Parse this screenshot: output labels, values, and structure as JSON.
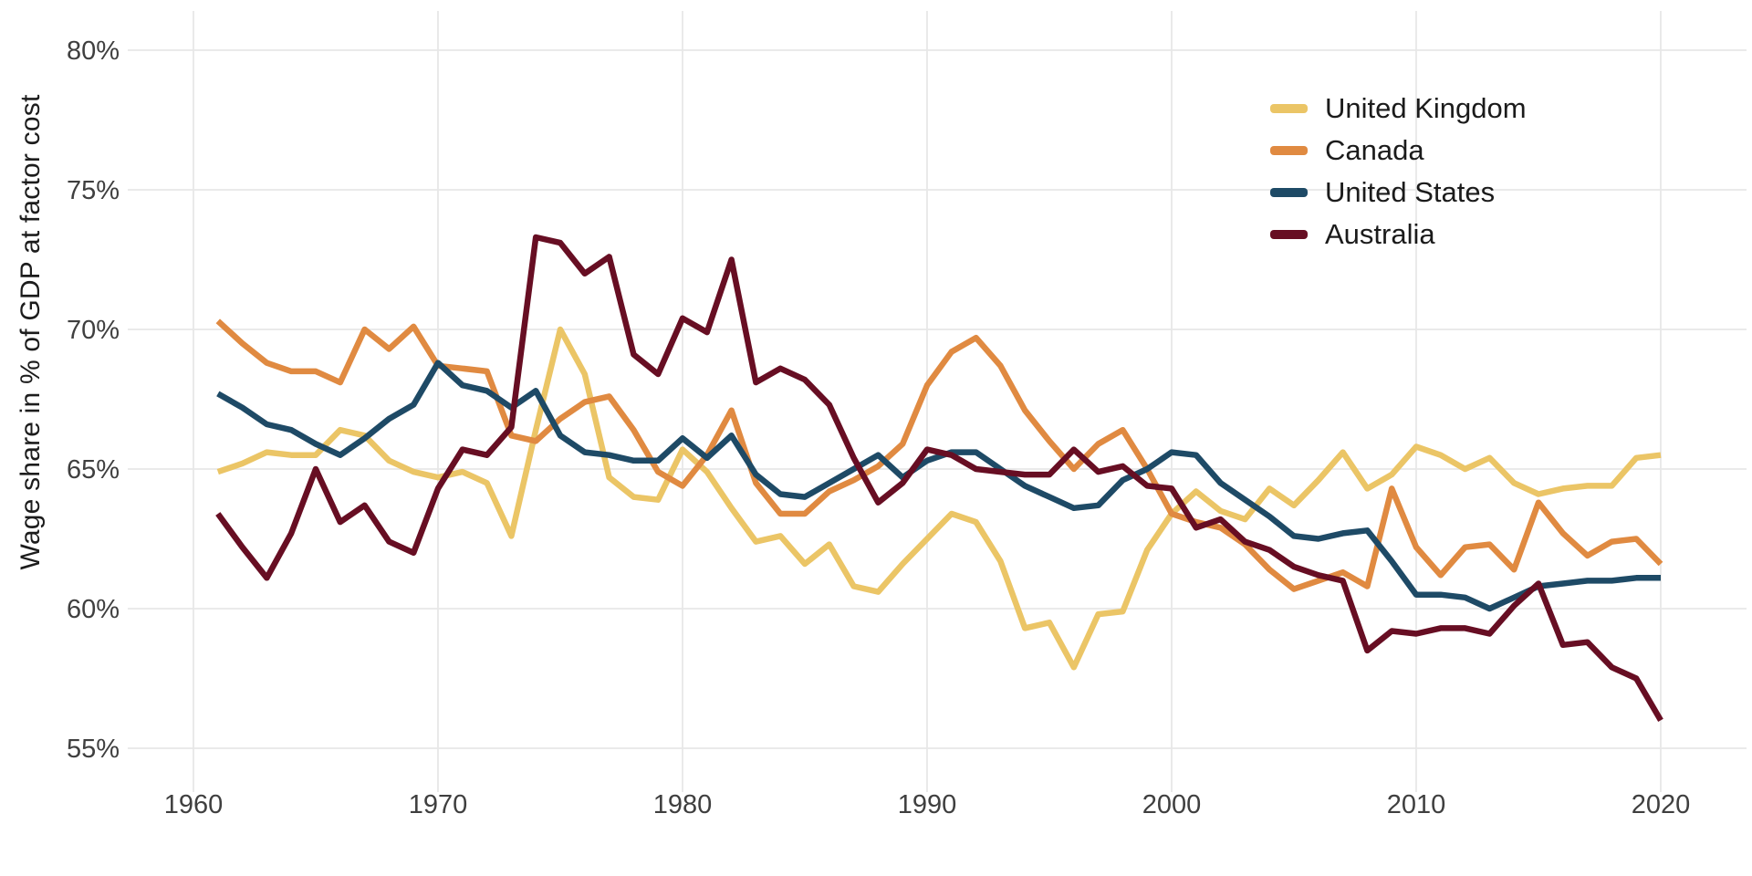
{
  "chart_data": {
    "type": "line",
    "title": "",
    "xlabel": "",
    "ylabel": "Wage share in % of GDP at factor cost",
    "ytick_suffix": "%",
    "xticks": [
      1960,
      1970,
      1980,
      1990,
      2000,
      2010,
      2020
    ],
    "yticks": [
      80,
      75,
      70,
      65,
      60,
      55
    ],
    "xlim": [
      1958,
      2023
    ],
    "ylim": [
      53.5,
      81.5
    ],
    "grid": true,
    "legend_position": "top-right",
    "background_color": "#ffffff",
    "gridline_color": "#e7e7e7",
    "tick_label_color": "#3f3f3f",
    "x": [
      1961,
      1962,
      1963,
      1964,
      1965,
      1966,
      1967,
      1968,
      1969,
      1970,
      1971,
      1972,
      1973,
      1974,
      1975,
      1976,
      1977,
      1978,
      1979,
      1980,
      1981,
      1982,
      1983,
      1984,
      1985,
      1986,
      1987,
      1988,
      1989,
      1990,
      1991,
      1992,
      1993,
      1994,
      1995,
      1996,
      1997,
      1998,
      1999,
      2000,
      2001,
      2002,
      2003,
      2004,
      2005,
      2006,
      2007,
      2008,
      2009,
      2010,
      2011,
      2012,
      2013,
      2014,
      2015,
      2016,
      2017,
      2018,
      2019,
      2020
    ],
    "series": [
      {
        "name": "United Kingdom",
        "color": "#ebc566",
        "values": [
          64.9,
          65.2,
          65.6,
          65.5,
          65.5,
          66.4,
          66.2,
          65.3,
          64.9,
          64.7,
          64.9,
          64.5,
          62.6,
          66.4,
          70.0,
          68.4,
          64.7,
          64.0,
          63.9,
          65.7,
          64.9,
          63.6,
          62.4,
          62.6,
          61.6,
          62.3,
          60.8,
          60.6,
          61.6,
          62.5,
          63.4,
          63.1,
          61.7,
          59.3,
          59.5,
          57.9,
          59.8,
          59.9,
          62.1,
          63.4,
          64.2,
          63.5,
          63.2,
          64.3,
          63.7,
          64.6,
          65.6,
          64.3,
          64.8,
          65.8,
          65.5,
          65.0,
          65.4,
          64.5,
          64.1,
          64.3,
          64.4,
          64.4,
          65.4,
          65.5
        ]
      },
      {
        "name": "Canada",
        "color": "#e08a41",
        "values": [
          70.3,
          69.5,
          68.8,
          68.5,
          68.5,
          68.1,
          70.0,
          69.3,
          70.1,
          68.7,
          68.6,
          68.5,
          66.2,
          66.0,
          66.8,
          67.4,
          67.6,
          66.4,
          64.9,
          64.4,
          65.5,
          67.1,
          64.5,
          63.4,
          63.4,
          64.2,
          64.6,
          65.1,
          65.9,
          68.0,
          69.2,
          69.7,
          68.7,
          67.1,
          66.0,
          65.0,
          65.9,
          66.4,
          65.0,
          63.4,
          63.1,
          62.9,
          62.3,
          61.4,
          60.7,
          61.0,
          61.3,
          60.8,
          64.3,
          62.2,
          61.2,
          62.2,
          62.3,
          61.4,
          63.8,
          62.7,
          61.9,
          62.4,
          62.5,
          61.6
        ]
      },
      {
        "name": "United States",
        "color": "#1e4a66",
        "values": [
          67.7,
          67.2,
          66.6,
          66.4,
          65.9,
          65.5,
          66.1,
          66.8,
          67.3,
          68.8,
          68.0,
          67.8,
          67.2,
          67.8,
          66.2,
          65.6,
          65.5,
          65.3,
          65.3,
          66.1,
          65.4,
          66.2,
          64.8,
          64.1,
          64.0,
          64.5,
          65.0,
          65.5,
          64.7,
          65.3,
          65.6,
          65.6,
          65.0,
          64.4,
          64.0,
          63.6,
          63.7,
          64.6,
          65.0,
          65.6,
          65.5,
          64.5,
          63.9,
          63.3,
          62.6,
          62.5,
          62.7,
          62.8,
          61.7,
          60.5,
          60.5,
          60.4,
          60.0,
          60.4,
          60.8,
          60.9,
          61.0,
          61.0,
          61.1,
          61.1
        ]
      },
      {
        "name": "Australia",
        "color": "#670e23",
        "values": [
          63.4,
          62.2,
          61.1,
          62.7,
          65.0,
          63.1,
          63.7,
          62.4,
          62.0,
          64.3,
          65.7,
          65.5,
          66.5,
          73.3,
          73.1,
          72.0,
          72.6,
          69.1,
          68.4,
          70.4,
          69.9,
          72.5,
          68.1,
          68.6,
          68.2,
          67.3,
          65.4,
          63.8,
          64.5,
          65.7,
          65.5,
          65.0,
          64.9,
          64.8,
          64.8,
          65.7,
          64.9,
          65.1,
          64.4,
          64.3,
          62.9,
          63.2,
          62.4,
          62.1,
          61.5,
          61.2,
          61.0,
          58.5,
          59.2,
          59.1,
          59.3,
          59.3,
          59.1,
          60.1,
          60.9,
          58.7,
          58.8,
          57.9,
          57.5,
          56.0
        ]
      }
    ]
  }
}
